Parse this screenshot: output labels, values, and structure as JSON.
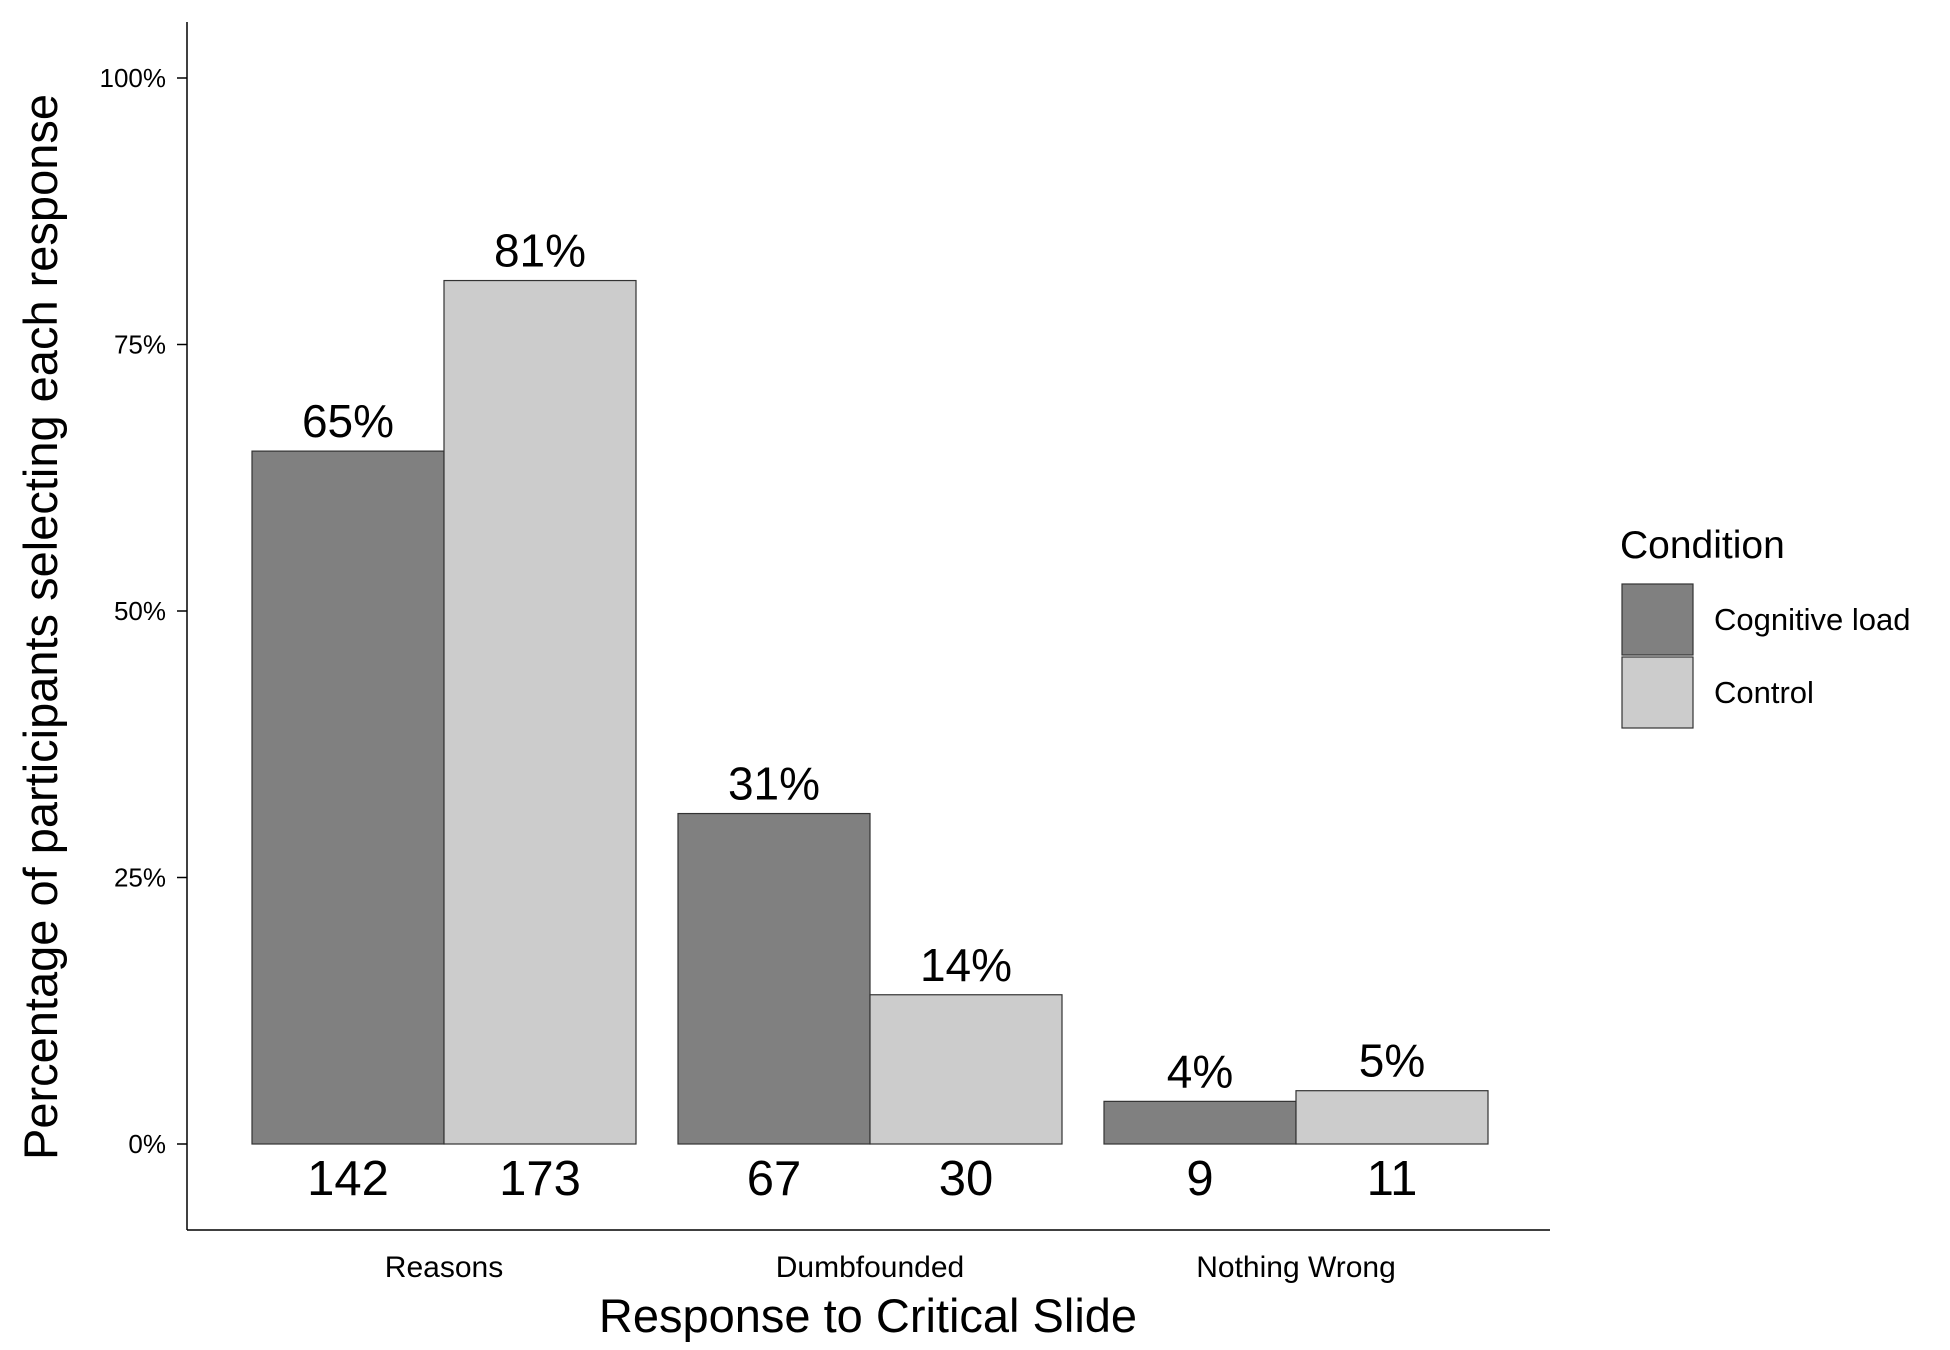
{
  "chart_data": {
    "type": "bar",
    "title": "",
    "xlabel": "Response to Critical Slide",
    "ylabel": "Percentage of participants selecting each response",
    "categories": [
      "Reasons",
      "Dumbfounded",
      "Nothing Wrong"
    ],
    "ylim": [
      0,
      1
    ],
    "yticks": [
      {
        "value": 0,
        "label": "0%"
      },
      {
        "value": 0.25,
        "label": "25%"
      },
      {
        "value": 0.5,
        "label": "50%"
      },
      {
        "value": 0.75,
        "label": "75%"
      },
      {
        "value": 1,
        "label": "100%"
      }
    ],
    "grid": false,
    "legend": {
      "title": "Condition",
      "position": "right"
    },
    "series": [
      {
        "name": "Cognitive load",
        "color": "#808080",
        "values": [
          0.65,
          0.31,
          0.04
        ],
        "labels": [
          "65%",
          "31%",
          "4%"
        ],
        "counts": [
          "142",
          "67",
          "9"
        ]
      },
      {
        "name": "Control",
        "color": "#cccccc",
        "values": [
          0.81,
          0.14,
          0.05
        ],
        "labels": [
          "81%",
          "14%",
          "5%"
        ],
        "counts": [
          "173",
          "30",
          "11"
        ]
      }
    ]
  }
}
